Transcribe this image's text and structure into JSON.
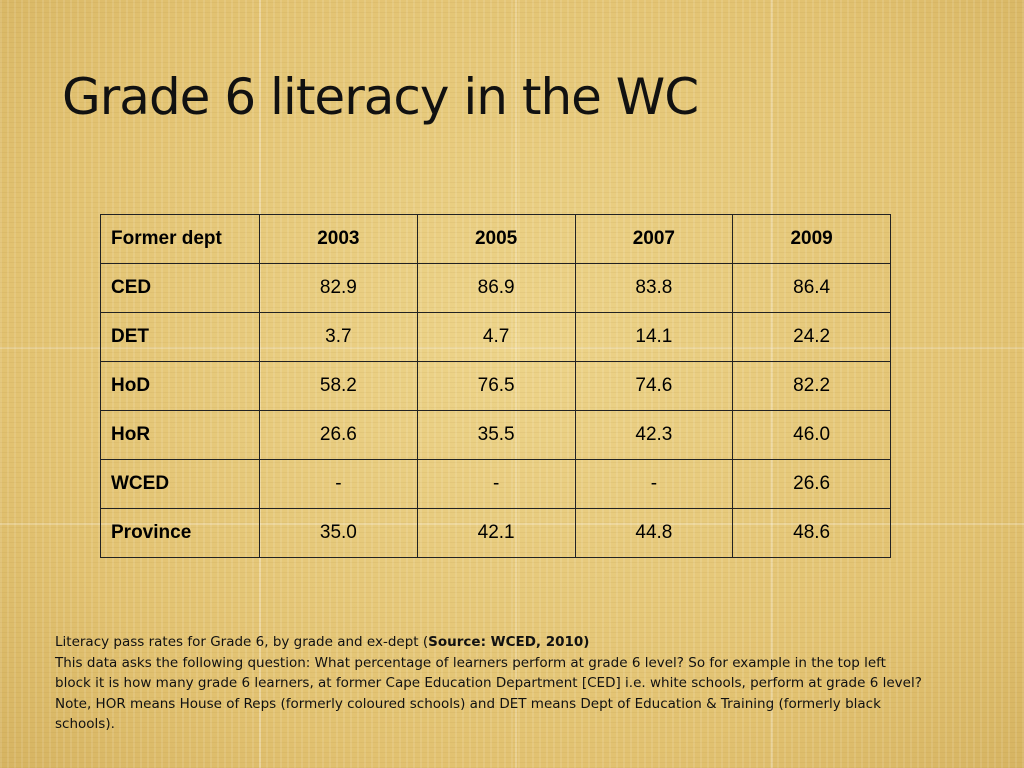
{
  "slide": {
    "title": "Grade 6 literacy in the WC"
  },
  "table": {
    "header": [
      "Former dept",
      "2003",
      "2005",
      "2007",
      "2009"
    ],
    "rows": [
      [
        "CED",
        "82.9",
        "86.9",
        "83.8",
        "86.4"
      ],
      [
        "DET",
        "3.7",
        "4.7",
        "14.1",
        "24.2"
      ],
      [
        "HoD",
        "58.2",
        "76.5",
        "74.6",
        "82.2"
      ],
      [
        "HoR",
        "26.6",
        "35.5",
        "42.3",
        "46.0"
      ],
      [
        "WCED",
        "-",
        "-",
        "-",
        "26.6"
      ],
      [
        "Province",
        "35.0",
        "42.1",
        "44.8",
        "48.6"
      ]
    ]
  },
  "caption": {
    "line1_prefix": "Literacy pass rates for Grade 6, by grade and ex-dept (",
    "line1_source": "Source: WCED, 2010)",
    "body": "This data asks the following question: What percentage of learners perform at grade 6 level? So for example in the top left block it is how many grade 6 learners, at former Cape Education Department [CED] i.e. white schools, perform at grade 6 level? Note, HOR means House of Reps (formerly coloured schools) and DET means Dept of Education & Training (formerly black schools)."
  }
}
